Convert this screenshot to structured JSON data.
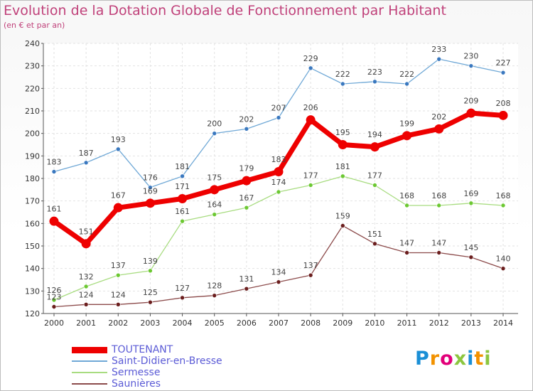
{
  "header": {
    "title": "Evolution de la Dotation Globale de Fonctionnement par Habitant",
    "subtitle": "(en € et par an)"
  },
  "logo": {
    "letters": [
      "P",
      "r",
      "o",
      "x",
      "i",
      "t",
      "i"
    ],
    "colors": [
      "#1a8fd6",
      "#f29200",
      "#e2007a",
      "#8cc63f",
      "#1a8fd6",
      "#f29200",
      "#8cc63f"
    ]
  },
  "chart_data": {
    "type": "line",
    "x": [
      "2000",
      "2001",
      "2002",
      "2003",
      "2004",
      "2005",
      "2006",
      "2007",
      "2008",
      "2009",
      "2010",
      "2011",
      "2012",
      "2013",
      "2014"
    ],
    "ylim": [
      120,
      240
    ],
    "yticks": [
      120,
      130,
      140,
      150,
      160,
      170,
      180,
      190,
      200,
      210,
      220,
      230,
      240
    ],
    "grid": true,
    "legend_position": "bottom-left",
    "series": [
      {
        "name": "Saint-Didier-en-Bresse",
        "color": "#6fa8d6",
        "point_color": "#3a78bf",
        "width": 1.3,
        "radius": 3,
        "values": [
          183,
          187,
          193,
          176,
          181,
          200,
          202,
          207,
          229,
          222,
          223,
          222,
          233,
          230,
          227
        ]
      },
      {
        "name": "Sermesse",
        "color": "#a8dc80",
        "point_color": "#6cc832",
        "width": 1.3,
        "radius": 3,
        "values": [
          126,
          132,
          137,
          139,
          161,
          164,
          167,
          174,
          177,
          181,
          177,
          168,
          168,
          169,
          168
        ]
      },
      {
        "name": "Saunières",
        "color": "#8c4b4b",
        "point_color": "#6b1e1e",
        "width": 1.3,
        "radius": 3,
        "values": [
          123,
          124,
          124,
          125,
          127,
          128,
          131,
          134,
          137,
          159,
          151,
          147,
          147,
          145,
          140
        ]
      },
      {
        "name": "TOUTENANT",
        "color": "#ee0000",
        "point_color": "#ee0000",
        "width": 7,
        "radius": 6.5,
        "values": [
          161,
          151,
          167,
          169,
          171,
          175,
          179,
          183,
          206,
          195,
          194,
          199,
          202,
          209,
          208
        ]
      }
    ],
    "legend_order": [
      "TOUTENANT",
      "Saint-Didier-en-Bresse",
      "Sermesse",
      "Saunières"
    ]
  }
}
